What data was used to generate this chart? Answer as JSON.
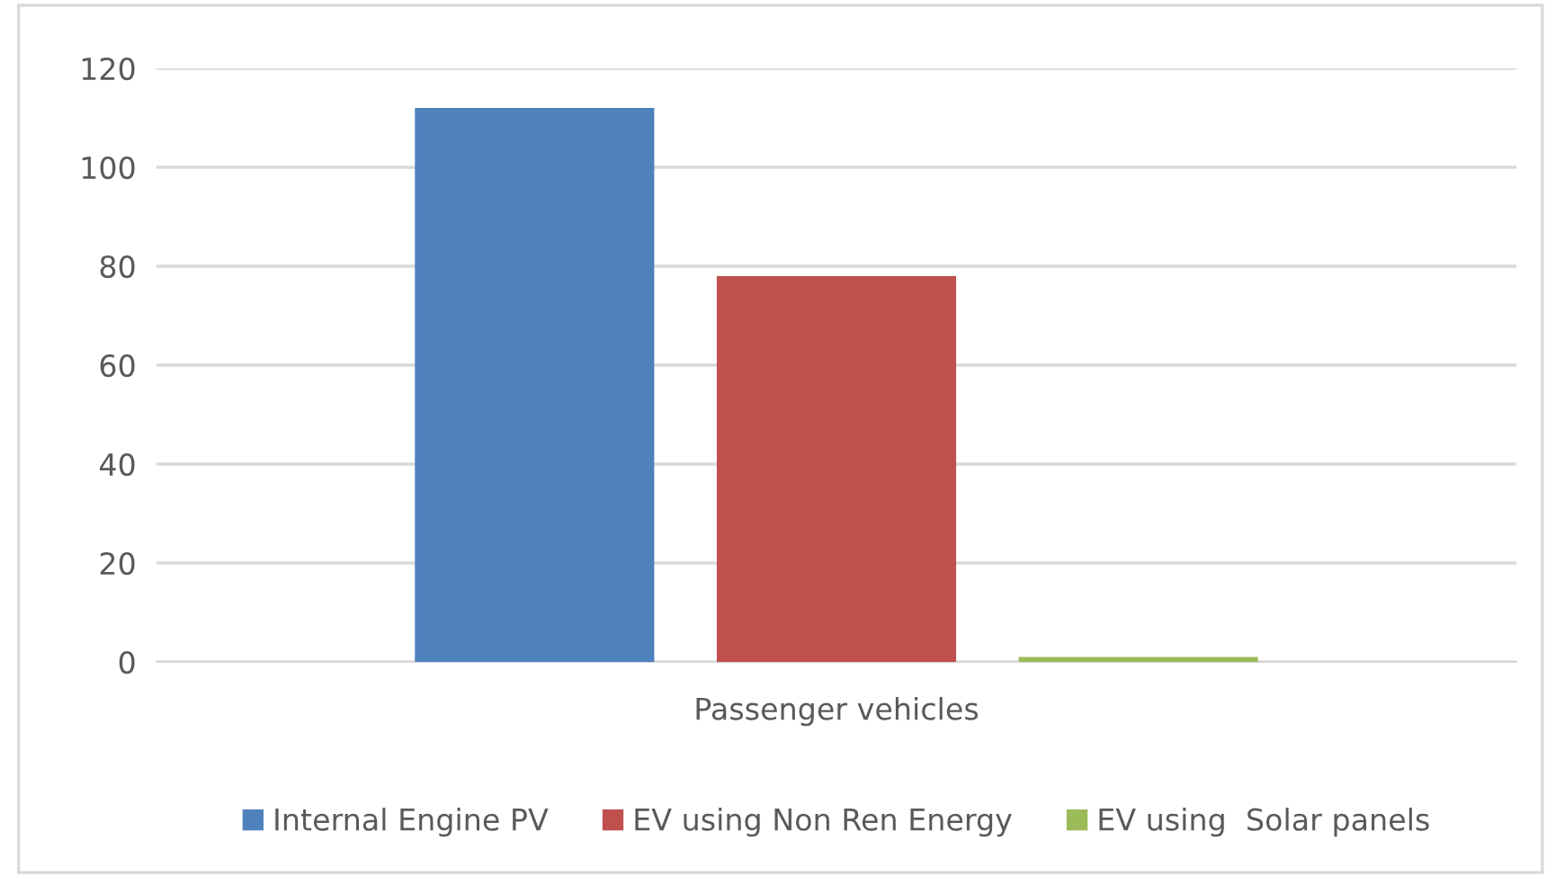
{
  "chart_data": {
    "type": "bar",
    "categories": [
      "Passenger vehicles"
    ],
    "series": [
      {
        "name": "Internal Engine PV",
        "color": "#4f81bd",
        "values": [
          112
        ]
      },
      {
        "name": "EV using Non Ren Energy",
        "color": "#c0504d",
        "values": [
          78
        ]
      },
      {
        "name": "EV using  Solar panels",
        "color": "#9bbb59",
        "values": [
          1
        ]
      }
    ],
    "ylim": [
      0,
      120
    ],
    "yticks": [
      0,
      20,
      40,
      60,
      80,
      100,
      120
    ],
    "grid": "y",
    "legend": "bottom"
  }
}
